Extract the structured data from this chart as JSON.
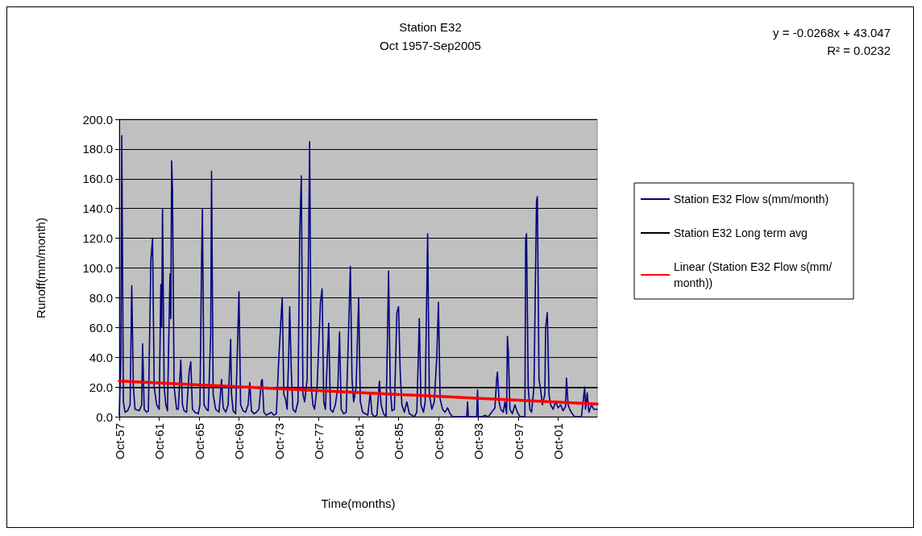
{
  "chart_data": {
    "type": "line",
    "title": "Station E32",
    "subtitle": "Oct 1957-Sep2005",
    "xlabel": "Time(months)",
    "ylabel": "Runoff(mm/month)",
    "annotations": [
      "y = -0.0268x + 43.047",
      "R² = 0.0232"
    ],
    "xlim": [
      "1957-10",
      "2005-09"
    ],
    "xticks": [
      {
        "value": "1957-10",
        "label": "Oct-57"
      },
      {
        "value": "1961-10",
        "label": "Oct-61"
      },
      {
        "value": "1965-10",
        "label": "Oct-65"
      },
      {
        "value": "1969-10",
        "label": "Oct-69"
      },
      {
        "value": "1973-10",
        "label": "Oct-73"
      },
      {
        "value": "1977-10",
        "label": "Oct-77"
      },
      {
        "value": "1981-10",
        "label": "Oct-81"
      },
      {
        "value": "1985-10",
        "label": "Oct-85"
      },
      {
        "value": "1989-10",
        "label": "Oct-89"
      },
      {
        "value": "1993-10",
        "label": "Oct-93"
      },
      {
        "value": "1997-10",
        "label": "Oct-97"
      },
      {
        "value": "2001-10",
        "label": "Oct-01"
      }
    ],
    "ylim": [
      0,
      200
    ],
    "yticks": [
      {
        "value": 0,
        "label": "0.0"
      },
      {
        "value": 20,
        "label": "20.0"
      },
      {
        "value": 40,
        "label": "40.0"
      },
      {
        "value": 60,
        "label": "60.0"
      },
      {
        "value": 80,
        "label": "80.0"
      },
      {
        "value": 100,
        "label": "100.0"
      },
      {
        "value": 120,
        "label": "120.0"
      },
      {
        "value": 140,
        "label": "140.0"
      },
      {
        "value": 160,
        "label": "160.0"
      },
      {
        "value": 180,
        "label": "180.0"
      },
      {
        "value": 200,
        "label": "200.0"
      }
    ],
    "grid": "y",
    "legend": "right",
    "marker": "none",
    "line_style": "solid",
    "series": [
      {
        "name": "Station E32 Flow s(mm/month)",
        "color": "#000080",
        "x": [
          "1957-10",
          "1957-12",
          "1958-01",
          "1958-03",
          "1958-05",
          "1958-08",
          "1958-11",
          "1959-01",
          "1959-03",
          "1959-05",
          "1959-10",
          "1960-01",
          "1960-02",
          "1960-04",
          "1960-07",
          "1960-09",
          "1960-12",
          "1961-02",
          "1961-04",
          "1961-07",
          "1961-10",
          "1961-12",
          "1962-01",
          "1962-02",
          "1962-04",
          "1962-06",
          "1962-08",
          "1962-11",
          "1962-12",
          "1963-01",
          "1963-02",
          "1963-04",
          "1963-07",
          "1963-09",
          "1963-12",
          "1964-02",
          "1964-04",
          "1964-07",
          "1964-10",
          "1964-12",
          "1965-02",
          "1965-05",
          "1965-09",
          "1965-11",
          "1966-01",
          "1966-02",
          "1966-04",
          "1966-07",
          "1966-09",
          "1966-12",
          "1967-01",
          "1967-03",
          "1967-06",
          "1967-10",
          "1968-01",
          "1968-03",
          "1968-06",
          "1968-09",
          "1968-12",
          "1969-01",
          "1969-03",
          "1969-06",
          "1969-10",
          "1969-12",
          "1970-03",
          "1970-06",
          "1970-09",
          "1970-11",
          "1971-01",
          "1971-04",
          "1971-07",
          "1971-10",
          "1972-01",
          "1972-02",
          "1972-04",
          "1972-07",
          "1972-10",
          "1973-01",
          "1973-04",
          "1973-07",
          "1973-10",
          "1974-02",
          "1974-04",
          "1974-06",
          "1974-08",
          "1974-10",
          "1974-11",
          "1975-01",
          "1975-03",
          "1975-06",
          "1975-09",
          "1975-11",
          "1976-01",
          "1976-03",
          "1976-05",
          "1976-08",
          "1976-11",
          "1977-01",
          "1977-03",
          "1977-05",
          "1977-08",
          "1977-12",
          "1978-02",
          "1978-04",
          "1978-06",
          "1978-08",
          "1978-10",
          "1978-12",
          "1979-03",
          "1979-06",
          "1979-09",
          "1979-11",
          "1980-01",
          "1980-04",
          "1980-07",
          "1980-10",
          "1980-12",
          "1981-02",
          "1981-04",
          "1981-07",
          "1981-10",
          "1981-12",
          "1982-03",
          "1982-06",
          "1982-09",
          "1982-12",
          "1983-02",
          "1983-05",
          "1983-08",
          "1983-11",
          "1984-01",
          "1984-04",
          "1984-07",
          "1984-10",
          "1984-12",
          "1985-02",
          "1985-05",
          "1985-08",
          "1985-10",
          "1985-12",
          "1986-02",
          "1986-05",
          "1986-08",
          "1986-11",
          "1987-02",
          "1987-05",
          "1987-08",
          "1987-11",
          "1988-01",
          "1988-04",
          "1988-06",
          "1988-09",
          "1988-11",
          "1989-02",
          "1989-05",
          "1989-08",
          "1989-10",
          "1989-12",
          "1990-03",
          "1990-06",
          "1990-09",
          "1990-12",
          "1991-03",
          "1991-07",
          "1991-12",
          "1992-05",
          "1992-08",
          "1992-09",
          "1992-10",
          "1993-03",
          "1993-08",
          "1993-09",
          "1993-10",
          "1994-02",
          "1994-06",
          "1994-10",
          "1995-02",
          "1995-06",
          "1995-08",
          "1995-09",
          "1995-11",
          "1996-01",
          "1996-04",
          "1996-06",
          "1996-08",
          "1996-09",
          "1996-10",
          "1996-12",
          "1997-03",
          "1997-06",
          "1997-09",
          "1997-12",
          "1998-03",
          "1998-06",
          "1998-07",
          "1998-08",
          "1998-10",
          "1998-12",
          "1999-02",
          "1999-05",
          "1999-08",
          "1999-09",
          "1999-11",
          "2000-01",
          "2000-03",
          "2000-06",
          "2000-07",
          "2000-09",
          "2000-11",
          "2001-01",
          "2001-04",
          "2001-07",
          "2001-10",
          "2002-01",
          "2002-04",
          "2002-07",
          "2002-08",
          "2002-10",
          "2002-12",
          "2003-03",
          "2003-06",
          "2003-10",
          "2004-02",
          "2004-05",
          "2004-06",
          "2004-07",
          "2004-09",
          "2004-11",
          "2005-02",
          "2005-05",
          "2005-09"
        ],
        "values": [
          1,
          40,
          189,
          10,
          3,
          4,
          8,
          88,
          20,
          5,
          4,
          8,
          49,
          5,
          3,
          4,
          105,
          120,
          20,
          8,
          5,
          89,
          60,
          140,
          20,
          8,
          4,
          96,
          66,
          172,
          152,
          20,
          5,
          5,
          38,
          8,
          4,
          3,
          30,
          37,
          5,
          3,
          2,
          8,
          105,
          140,
          8,
          5,
          4,
          55,
          165,
          15,
          5,
          3,
          25,
          6,
          3,
          8,
          52,
          15,
          4,
          2,
          84,
          8,
          4,
          3,
          8,
          23,
          4,
          2,
          3,
          5,
          24,
          25,
          3,
          1,
          2,
          3,
          1,
          2,
          40,
          80,
          15,
          12,
          5,
          45,
          74,
          30,
          5,
          3,
          10,
          120,
          162,
          15,
          10,
          25,
          185,
          20,
          8,
          5,
          20,
          77,
          86,
          10,
          5,
          35,
          63,
          5,
          3,
          8,
          20,
          57,
          5,
          2,
          3,
          60,
          101,
          25,
          10,
          20,
          80,
          10,
          3,
          2,
          1,
          16,
          2,
          0,
          1,
          24,
          8,
          2,
          0,
          98,
          20,
          4,
          5,
          70,
          74,
          30,
          8,
          3,
          10,
          2,
          1,
          0,
          3,
          66,
          8,
          3,
          10,
          123,
          15,
          5,
          10,
          40,
          77,
          12,
          5,
          3,
          6,
          2,
          0,
          0,
          0,
          0,
          0,
          10,
          0,
          0,
          0,
          18,
          0,
          0,
          1,
          0,
          3,
          6,
          25,
          30,
          10,
          5,
          3,
          10,
          2,
          54,
          45,
          5,
          2,
          8,
          3,
          0,
          0,
          0,
          120,
          123,
          20,
          5,
          3,
          20,
          145,
          148,
          25,
          18,
          8,
          15,
          60,
          70,
          15,
          8,
          5,
          10,
          6,
          8,
          4,
          7,
          26,
          8,
          5,
          2,
          0,
          0,
          0,
          15,
          20,
          5,
          16,
          3,
          8,
          5,
          5
        ]
      },
      {
        "name": "Station E32 Long term avg",
        "color": "#000000",
        "x": [
          "1957-10",
          "2005-09"
        ],
        "values": [
          19.5,
          19.5
        ]
      },
      {
        "name": "Linear (Station E32 Flow s(mm/month))",
        "color": "#ff0000",
        "x": [
          "1957-10",
          "2005-09"
        ],
        "values": [
          24,
          8.5
        ]
      }
    ]
  }
}
